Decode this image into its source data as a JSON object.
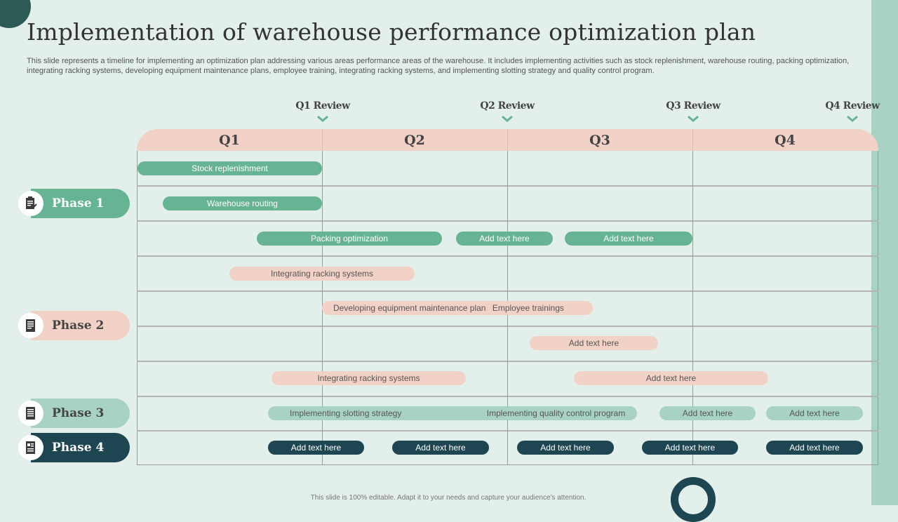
{
  "title": "Implementation of warehouse performance optimization plan",
  "description": "This slide represents a timeline for implementing an optimization plan addressing various areas performance areas of the warehouse. It includes implementing activities such as stock replenishment, warehouse routing, packing optimization, integrating racking systems, developing equipment maintenance plans, employee training, integrating racking systems, and implementing slotting strategy and quality control program.",
  "reviews": [
    "Q1 Review",
    "Q2 Review",
    "Q3 Review",
    "Q4 Review"
  ],
  "quarters": [
    "Q1",
    "Q2",
    "Q3",
    "Q4"
  ],
  "phases": [
    {
      "label": "Phase 1",
      "icon": "checklist-icon"
    },
    {
      "label": "Phase 2",
      "icon": "document-icon"
    },
    {
      "label": "Phase 3",
      "icon": "document-icon"
    },
    {
      "label": "Phase 4",
      "icon": "document-icon"
    }
  ],
  "tasks": [
    "Stock replenishment",
    "Warehouse routing",
    "Packing optimization",
    "Add text here",
    "Add text here",
    "Integrating racking systems",
    "Developing equipment maintenance plan",
    "Employee trainings",
    "Add text here",
    "Integrating racking systems",
    "Add text here",
    "Implementing slotting strategy",
    "Implementing quality control program",
    "Add text here",
    "Add text here",
    "Add text here",
    "Add text here",
    "Add text here",
    "Add text here",
    "Add text here"
  ],
  "footer": "This slide is 100% editable. Adapt it to your needs and capture your audience's attention.",
  "colors": {
    "background": "#e3efeb",
    "phase1": "#67b494",
    "phase2": "#f2d2c6",
    "phase3": "#a8d3c3",
    "phase4": "#1e4552"
  }
}
